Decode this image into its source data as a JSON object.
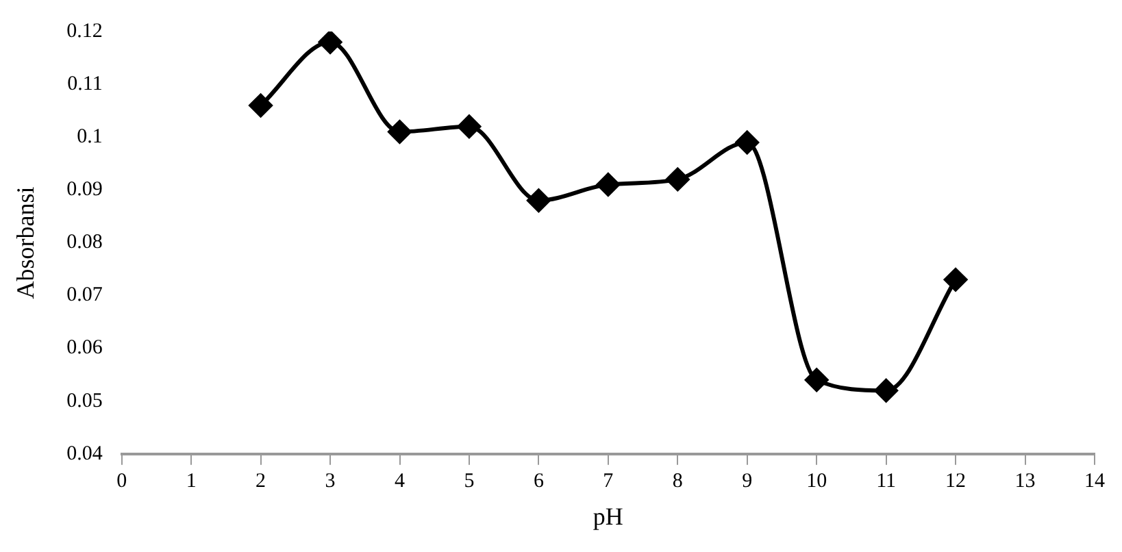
{
  "chart_data": {
    "type": "line",
    "xlabel": "pH",
    "ylabel": "Absorbansi",
    "x": [
      2,
      3,
      4,
      5,
      6,
      7,
      8,
      9,
      10,
      11,
      12
    ],
    "series": [
      {
        "color": "#000000",
        "values": [
          0.106,
          0.118,
          0.101,
          0.102,
          0.088,
          0.091,
          0.092,
          0.099,
          0.054,
          0.052,
          0.073
        ]
      }
    ],
    "xlim": [
      0,
      14
    ],
    "xticks": [
      0,
      1,
      2,
      3,
      4,
      5,
      6,
      7,
      8,
      9,
      10,
      11,
      12,
      13,
      14
    ],
    "ylim": [
      0.04,
      0.12
    ],
    "yticks": [
      0.04,
      0.05,
      0.06,
      0.07,
      0.08,
      0.09,
      0.1,
      0.11,
      0.12
    ],
    "grid": false,
    "legend": false,
    "marker": "diamond",
    "line_style": "solid"
  }
}
